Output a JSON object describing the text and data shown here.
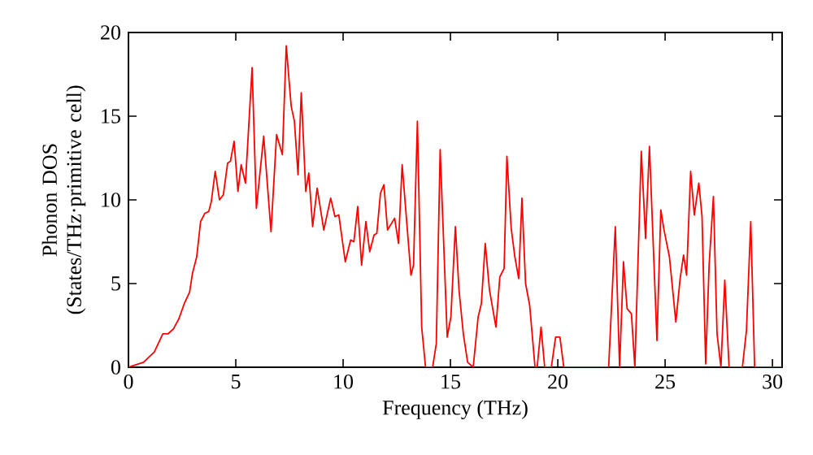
{
  "chart_data": {
    "type": "line",
    "xlabel": "Frequency (THz)",
    "ylabel": "Phonon DOS (States/THz·primitive cell)",
    "xlim": [
      0,
      30.45
    ],
    "ylim": [
      0,
      20
    ],
    "xticks": [
      0,
      5,
      10,
      15,
      20,
      25,
      30
    ],
    "yticks": [
      0,
      5,
      10,
      15,
      20
    ],
    "grid": false,
    "series": [
      {
        "color": "#ff0000",
        "x": [
          0,
          0.7,
          1.2,
          1.6,
          1.85,
          2.1,
          2.35,
          2.6,
          2.85,
          2.98,
          3.18,
          3.36,
          3.56,
          3.74,
          3.86,
          4.04,
          4.24,
          4.42,
          4.62,
          4.75,
          4.92,
          5.1,
          5.25,
          5.45,
          5.76,
          5.96,
          6.3,
          6.64,
          6.9,
          7.17,
          7.35,
          7.58,
          7.73,
          7.9,
          8.05,
          8.26,
          8.4,
          8.58,
          8.79,
          9.1,
          9.42,
          9.62,
          9.8,
          10.1,
          10.35,
          10.5,
          10.68,
          10.86,
          11.06,
          11.24,
          11.44,
          11.57,
          11.74,
          11.9,
          12.07,
          12.4,
          12.58,
          12.75,
          13.16,
          13.28,
          13.46,
          13.66,
          13.84,
          14.17,
          14.34,
          14.52,
          14.85,
          15.02,
          15.23,
          15.4,
          15.6,
          15.8,
          16.06,
          16.29,
          16.44,
          16.62,
          16.82,
          17.12,
          17.3,
          17.5,
          17.63,
          17.83,
          18.0,
          18.18,
          18.33,
          18.5,
          18.69,
          18.94,
          19.04,
          19.22,
          19.39,
          19.7,
          19.9,
          20.1,
          20.28,
          22.37,
          22.68,
          22.88,
          23.06,
          23.23,
          23.43,
          23.59,
          23.89,
          24.09,
          24.27,
          24.62,
          24.8,
          24.95,
          25.2,
          25.5,
          25.7,
          25.86,
          26.0,
          26.19,
          26.36,
          26.57,
          26.72,
          26.89,
          27.05,
          27.25,
          27.42,
          27.6,
          27.78,
          27.98,
          28.6,
          28.79,
          28.99,
          29.17,
          30.43
        ],
        "values": [
          0,
          0.3,
          0.9,
          2.0,
          2.0,
          2.3,
          2.9,
          3.8,
          4.5,
          5.6,
          6.6,
          8.7,
          9.2,
          9.3,
          9.9,
          11.7,
          10.0,
          10.3,
          12.2,
          12.3,
          13.5,
          10.5,
          12.1,
          11.0,
          17.9,
          9.5,
          13.8,
          8.1,
          13.9,
          12.7,
          19.2,
          15.6,
          14.7,
          11.5,
          16.4,
          10.5,
          11.6,
          8.4,
          10.7,
          8.2,
          10.1,
          9.0,
          9.1,
          6.3,
          7.6,
          7.5,
          9.6,
          6.1,
          8.7,
          6.9,
          7.9,
          8.0,
          10.4,
          10.9,
          8.2,
          8.9,
          7.4,
          12.1,
          5.5,
          6.1,
          14.7,
          2.4,
          0,
          0,
          1.4,
          13.0,
          1.8,
          3.0,
          8.4,
          4.6,
          2.0,
          0.3,
          0,
          3.0,
          3.8,
          7.4,
          4.6,
          2.4,
          5.4,
          5.9,
          12.6,
          8.3,
          6.6,
          5.3,
          10.1,
          5.0,
          3.7,
          0,
          0,
          2.4,
          0,
          0,
          1.8,
          1.8,
          0,
          0,
          8.4,
          0,
          6.3,
          3.5,
          3.2,
          0,
          12.9,
          7.7,
          13.2,
          1.6,
          9.4,
          8.2,
          6.6,
          2.7,
          5.3,
          6.7,
          5.5,
          11.7,
          9.1,
          11.0,
          9.0,
          0.2,
          6.1,
          10.2,
          2.0,
          0,
          5.2,
          0,
          0,
          2.2,
          8.7,
          0,
          0
        ]
      }
    ]
  }
}
